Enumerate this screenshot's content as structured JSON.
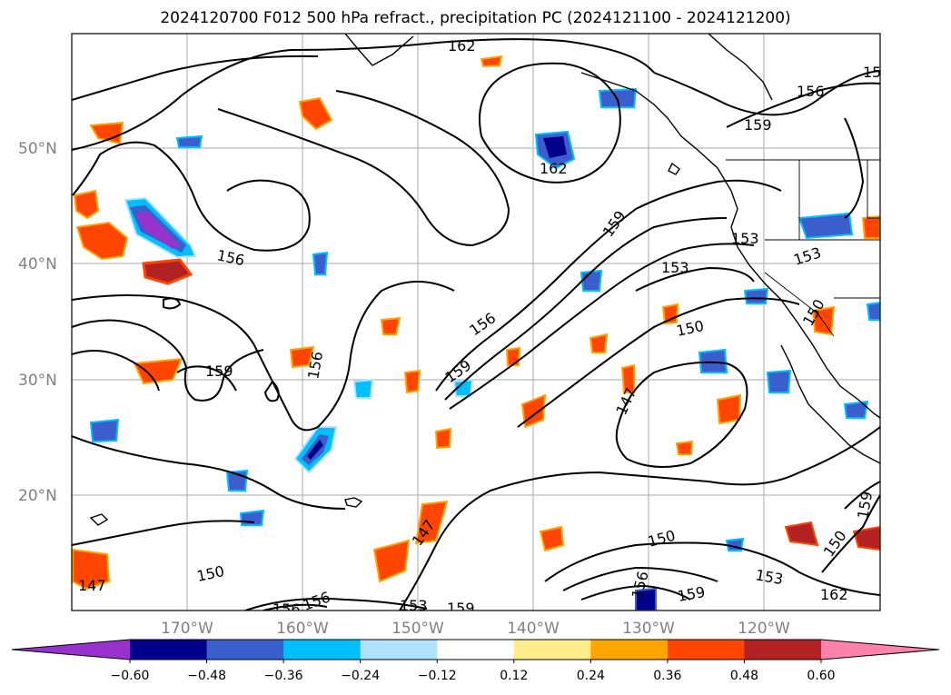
{
  "title": "2024120700 F012 500 hPa refract., precipitation PC (2024121100 - 2024121200)",
  "lat_labels": [
    "50°N",
    "40°N",
    "30°N",
    "20°N"
  ],
  "lon_labels": [
    "170°W",
    "160°W",
    "150°W",
    "140°W",
    "130°W",
    "120°W"
  ],
  "colorbar": {
    "ticks": [
      "−0.60",
      "−0.48",
      "−0.36",
      "−0.24",
      "−0.12",
      "0.12",
      "0.24",
      "0.36",
      "0.48",
      "0.60"
    ],
    "colors": [
      "#9932cc",
      "#00008b",
      "#3a5fcd",
      "#00bfff",
      "#b0e2ff",
      "#ffffff",
      "#ffec8b",
      "#ffa500",
      "#ff4500",
      "#b22222",
      "#ff82ab"
    ]
  },
  "contour_labels": [
    "162",
    "156",
    "159",
    "15",
    "162",
    "156",
    "159",
    "153",
    "153",
    "153",
    "159",
    "150",
    "156",
    "159",
    "156",
    "147",
    "159",
    "150",
    "156",
    "150",
    "159",
    "153",
    "162",
    "147",
    "147",
    "156",
    "156",
    "153",
    "159",
    "150",
    "150"
  ]
}
